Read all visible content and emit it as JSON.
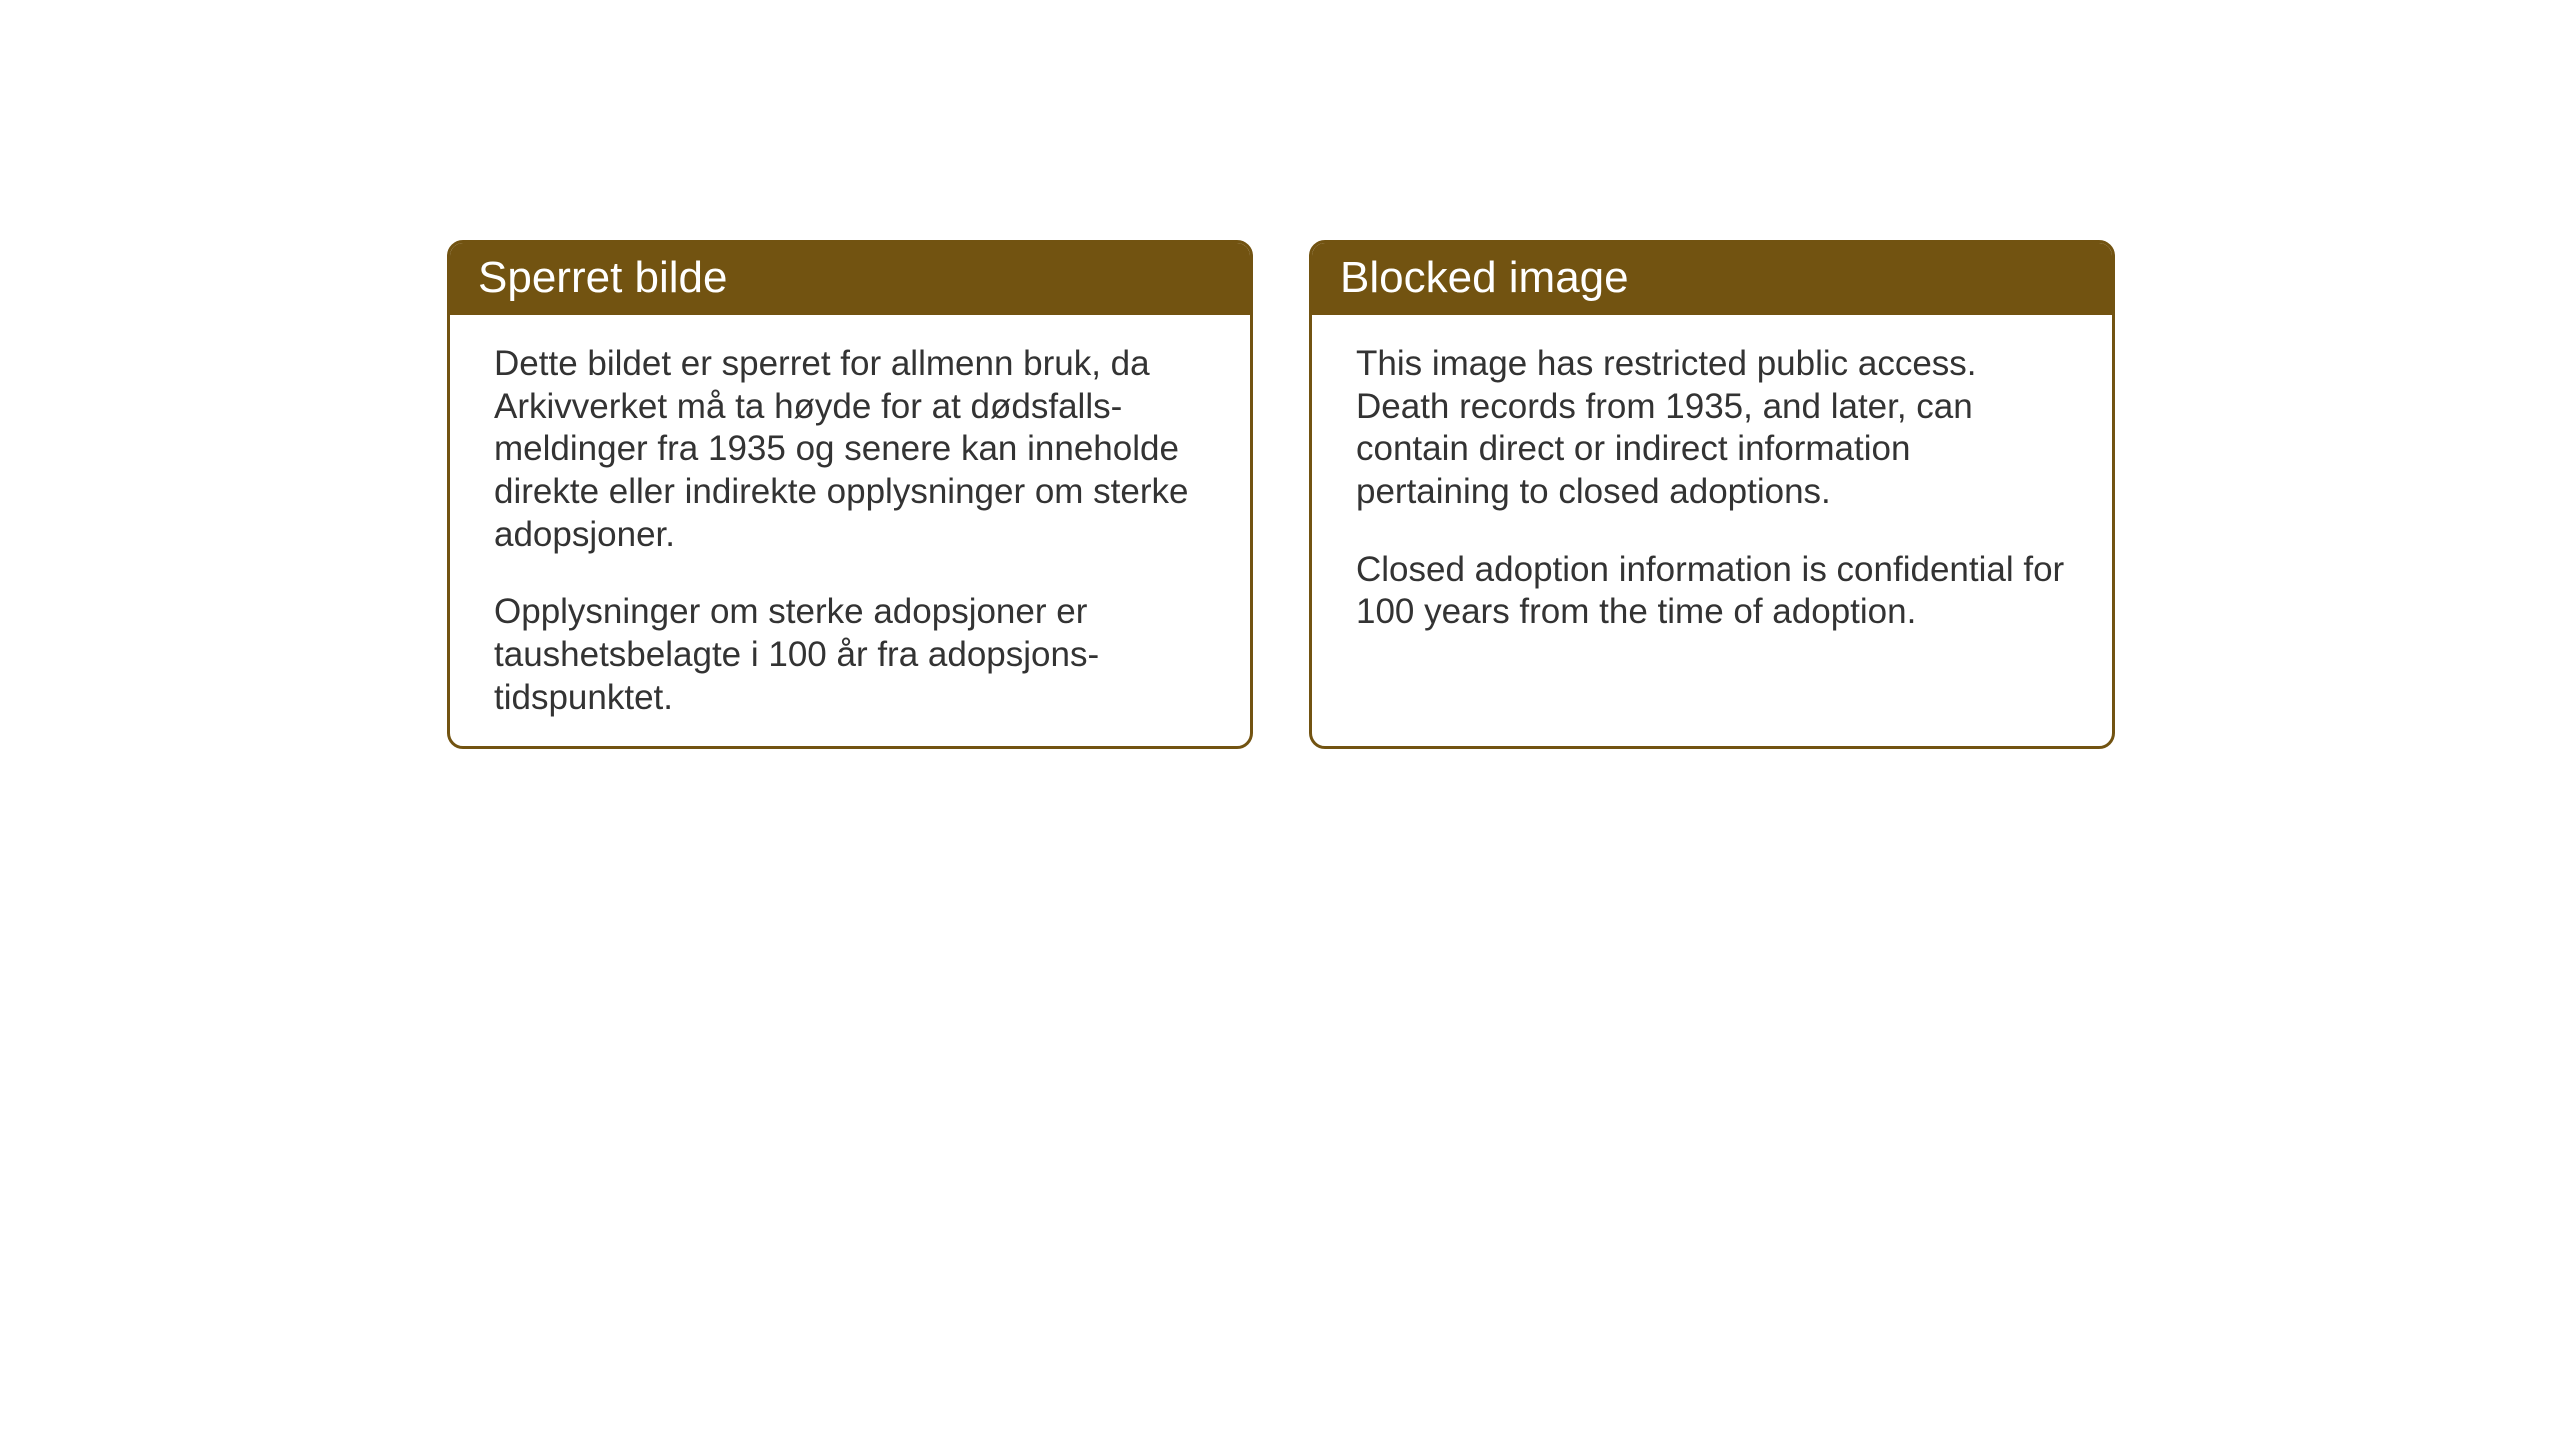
{
  "layout": {
    "background_color": "#ffffff",
    "card_border_color": "#725311",
    "card_header_bg_color": "#725311",
    "card_header_text_color": "#ffffff",
    "card_body_text_color": "#333333",
    "card_border_radius": 16,
    "card_border_width": 3,
    "header_font_size": 44,
    "body_font_size": 35
  },
  "cards": [
    {
      "title": "Sperret bilde",
      "paragraphs": [
        "Dette bildet er sperret for allmenn bruk, da Arkivverket må ta høyde for at dødsfalls-meldinger fra 1935 og senere kan inneholde direkte eller indirekte opplysninger om sterke adopsjoner.",
        "Opplysninger om sterke adopsjoner er taushetsbelagte i 100 år fra adopsjons-tidspunktet."
      ]
    },
    {
      "title": "Blocked image",
      "paragraphs": [
        "This image has restricted public access. Death records from 1935, and later, can contain direct or indirect information pertaining to closed adoptions.",
        "Closed adoption information is confidential for 100 years from the time of adoption."
      ]
    }
  ]
}
